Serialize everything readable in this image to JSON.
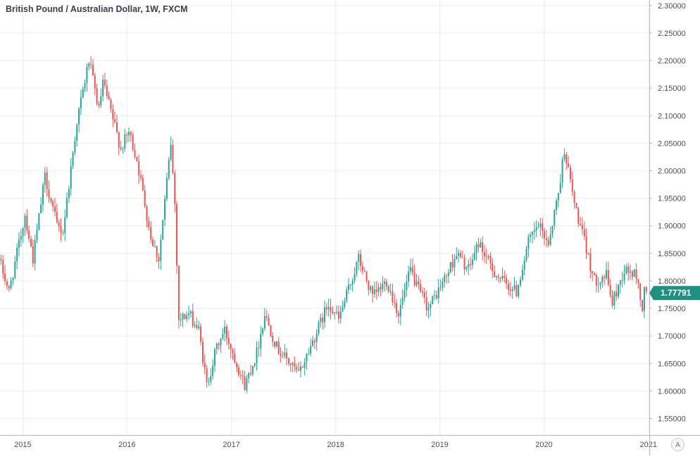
{
  "chart_data": {
    "type": "candlestick",
    "title": "British Pound / Australian Dollar, 1W, FXCM",
    "interval": "1W",
    "source": "FXCM",
    "x_tick_labels": [
      "2015",
      "2016",
      "2017",
      "2018",
      "2019",
      "2020",
      "2021"
    ],
    "y_tick_labels": [
      "1.55000",
      "1.60000",
      "1.65000",
      "1.70000",
      "1.75000",
      "1.80000",
      "1.85000",
      "1.90000",
      "1.95000",
      "2.00000",
      "2.05000",
      "2.10000",
      "2.15000",
      "2.20000",
      "2.25000",
      "2.30000"
    ],
    "ylim": [
      1.52,
      2.31
    ],
    "xlim": [
      "2014-10-13",
      "2021-01-04"
    ],
    "last_price": "1.77791",
    "grid": true,
    "legend": "none",
    "colors": {
      "up": "#26a69a",
      "down": "#ef5350",
      "grid": "#e9ecf1",
      "axis_text": "#4a4f5a",
      "price_tag": "#1e9080"
    },
    "key_points": [
      [
        "2014-10-13",
        1.84
      ],
      [
        "2014-11-17",
        1.78
      ],
      [
        "2015-01-12",
        1.92
      ],
      [
        "2015-02-09",
        1.84
      ],
      [
        "2015-03-23",
        1.99
      ],
      [
        "2015-05-04",
        1.9
      ],
      [
        "2015-05-25",
        1.89
      ],
      [
        "2015-07-13",
        2.09
      ],
      [
        "2015-08-24",
        2.2
      ],
      [
        "2015-09-28",
        2.11
      ],
      [
        "2015-10-12",
        2.16
      ],
      [
        "2015-12-14",
        2.04
      ],
      [
        "2016-01-11",
        2.07
      ],
      [
        "2016-02-08",
        2.02
      ],
      [
        "2016-03-28",
        1.88
      ],
      [
        "2016-04-25",
        1.84
      ],
      [
        "2016-06-06",
        2.05
      ],
      [
        "2016-06-20",
        1.94
      ],
      [
        "2016-07-04",
        1.73
      ],
      [
        "2016-08-08",
        1.74
      ],
      [
        "2016-09-12",
        1.71
      ],
      [
        "2016-10-10",
        1.61
      ],
      [
        "2016-11-14",
        1.68
      ],
      [
        "2016-12-12",
        1.71
      ],
      [
        "2017-01-23",
        1.65
      ],
      [
        "2017-02-20",
        1.61
      ],
      [
        "2017-04-03",
        1.67
      ],
      [
        "2017-05-01",
        1.74
      ],
      [
        "2017-06-12",
        1.68
      ],
      [
        "2017-08-28",
        1.63
      ],
      [
        "2017-10-16",
        1.69
      ],
      [
        "2017-12-11",
        1.76
      ],
      [
        "2018-01-15",
        1.73
      ],
      [
        "2018-03-26",
        1.84
      ],
      [
        "2018-05-14",
        1.77
      ],
      [
        "2018-07-02",
        1.8
      ],
      [
        "2018-08-13",
        1.74
      ],
      [
        "2018-09-24",
        1.82
      ],
      [
        "2018-10-15",
        1.79
      ],
      [
        "2018-11-26",
        1.75
      ],
      [
        "2019-01-28",
        1.81
      ],
      [
        "2019-03-04",
        1.85
      ],
      [
        "2019-04-15",
        1.82
      ],
      [
        "2019-05-20",
        1.87
      ],
      [
        "2019-07-08",
        1.82
      ],
      [
        "2019-08-12",
        1.8
      ],
      [
        "2019-09-30",
        1.78
      ],
      [
        "2019-11-11",
        1.87
      ],
      [
        "2019-12-16",
        1.9
      ],
      [
        "2020-01-20",
        1.87
      ],
      [
        "2020-02-24",
        1.96
      ],
      [
        "2020-03-16",
        2.04
      ],
      [
        "2020-04-20",
        1.94
      ],
      [
        "2020-05-25",
        1.87
      ],
      [
        "2020-06-29",
        1.8
      ],
      [
        "2020-08-10",
        1.81
      ],
      [
        "2020-08-31",
        1.76
      ],
      [
        "2020-10-12",
        1.82
      ],
      [
        "2020-11-23",
        1.81
      ],
      [
        "2020-12-14",
        1.75
      ],
      [
        "2020-12-21",
        1.78
      ]
    ]
  },
  "ui": {
    "scale_mode_button": "A"
  }
}
